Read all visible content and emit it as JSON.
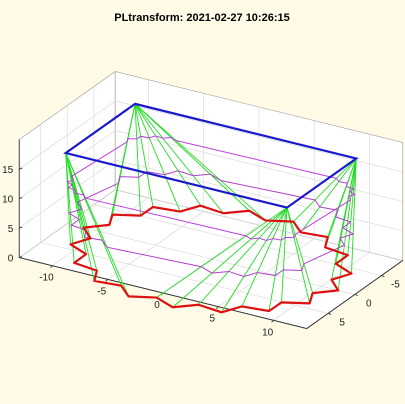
{
  "chart_data": {
    "type": "3d-line",
    "title": "PLtransform: 2021-02-27 10:26:15",
    "xlabel": "",
    "ylabel": "",
    "zlabel": "",
    "xlim": [
      -13,
      13
    ],
    "ylim": [
      -9,
      9
    ],
    "zlim": [
      0,
      20
    ],
    "x_ticks": [
      -10,
      -5,
      0,
      5,
      10
    ],
    "y_ticks": [
      -5,
      0,
      5
    ],
    "z_ticks": [
      0,
      5,
      10,
      15
    ],
    "grid": true,
    "box": true,
    "star_outline": {
      "points": 18,
      "outer_radius": 11.5,
      "inner_radius": 10.2,
      "z": 0,
      "color": "#dd1111"
    },
    "top_rectangle": {
      "corners": [
        [
          -10,
          -6.5
        ],
        [
          10,
          -6.5
        ],
        [
          10,
          6.5
        ],
        [
          -10,
          6.5
        ]
      ],
      "z": 17.5,
      "color": "#1a1acc"
    },
    "intermediate_levels": [
      {
        "z": 6,
        "color": "#b040c8"
      },
      {
        "z": 12,
        "color": "#c040e0"
      }
    ],
    "connector_color": "#22dd22"
  }
}
